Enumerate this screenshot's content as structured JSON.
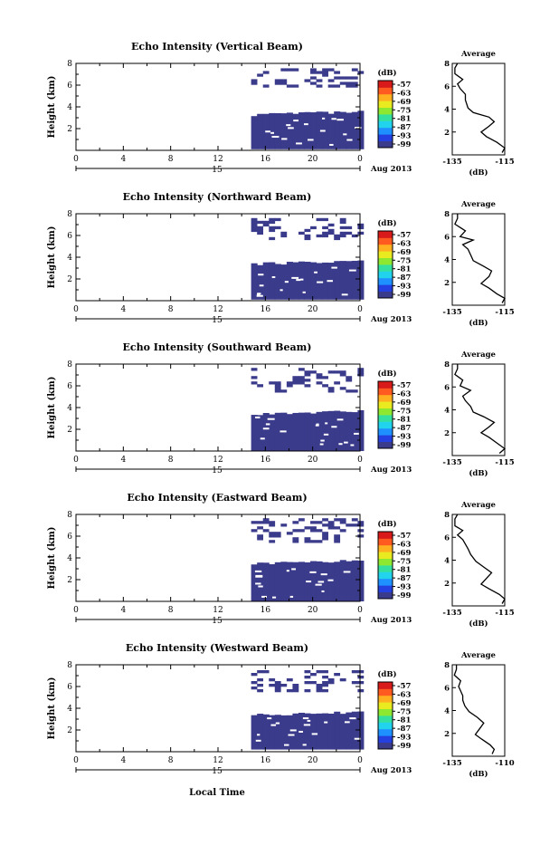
{
  "figure": {
    "xlabel": "Local Time",
    "date_label": "Aug 2013",
    "day_label": "15",
    "ylabel": "Height (km)",
    "colorbar_unit": "(dB)",
    "colorbar_ticks": [
      "-57",
      "-63",
      "-69",
      "-75",
      "-81",
      "-87",
      "-93",
      "-99"
    ],
    "colormap": [
      "#3b3b8c",
      "#2540e0",
      "#1e90ff",
      "#22d3ee",
      "#34e0a0",
      "#8ee830",
      "#eaea20",
      "#ffb020",
      "#ff5a20",
      "#d81a1a"
    ],
    "no_data_color": "#ffffff",
    "profile_title": "Average",
    "profile_xlabel": "(dB)"
  },
  "chart_data": [
    {
      "type": "heatmap",
      "title": "Echo Intensity (Vertical Beam)",
      "xlabel": "Local Time",
      "ylabel": "Height (km)",
      "xlim": [
        0,
        24
      ],
      "ylim": [
        0,
        8
      ],
      "x_ticks": [
        "0",
        "4",
        "8",
        "12",
        "16",
        "20",
        "0"
      ],
      "y_ticks": [
        "2",
        "4",
        "6",
        "8"
      ],
      "colorbar": {
        "unit": "(dB)",
        "range": [
          -99,
          -57
        ]
      },
      "data_start_hour": 14.8,
      "lower_layer_km": [
        0.1,
        3.3
      ],
      "upper_layer_km": [
        5.8,
        7.4
      ],
      "fill_value_db": -99,
      "profile": {
        "title": "Average",
        "xlabel": "(dB)",
        "xlim": [
          -135,
          -115
        ],
        "x_ticks": [
          "-135",
          "-115"
        ],
        "y_ticks": [
          "2",
          "4",
          "6",
          "8"
        ],
        "points": [
          [
            -116,
            0.2
          ],
          [
            -115,
            0.6
          ],
          [
            -118,
            1.1
          ],
          [
            -122,
            1.6
          ],
          [
            -124,
            2.0
          ],
          [
            -121,
            2.5
          ],
          [
            -119,
            2.9
          ],
          [
            -121,
            3.3
          ],
          [
            -127,
            3.7
          ],
          [
            -129,
            4.1
          ],
          [
            -130,
            4.8
          ],
          [
            -130,
            5.3
          ],
          [
            -132,
            5.8
          ],
          [
            -133,
            6.2
          ],
          [
            -131,
            6.6
          ],
          [
            -134,
            7.1
          ],
          [
            -134,
            7.6
          ],
          [
            -133,
            8.0
          ]
        ]
      }
    },
    {
      "type": "heatmap",
      "title": "Echo Intensity (Northward Beam)",
      "xlabel": "Local Time",
      "ylabel": "Height (km)",
      "xlim": [
        0,
        24
      ],
      "ylim": [
        0,
        8
      ],
      "x_ticks": [
        "0",
        "4",
        "8",
        "12",
        "16",
        "20",
        "0"
      ],
      "y_ticks": [
        "2",
        "4",
        "6",
        "8"
      ],
      "colorbar": {
        "unit": "(dB)",
        "range": [
          -99,
          -57
        ]
      },
      "data_start_hour": 14.8,
      "lower_layer_km": [
        0.1,
        3.4
      ],
      "upper_layer_km": [
        5.6,
        7.5
      ],
      "fill_value_db": -99,
      "profile": {
        "title": "Average",
        "xlabel": "(dB)",
        "xlim": [
          -135,
          -115
        ],
        "x_ticks": [
          "-135",
          "-115"
        ],
        "y_ticks": [
          "2",
          "4",
          "6",
          "8"
        ],
        "points": [
          [
            -116,
            0.2
          ],
          [
            -115,
            0.6
          ],
          [
            -118,
            1.0
          ],
          [
            -121,
            1.5
          ],
          [
            -124,
            1.9
          ],
          [
            -121,
            2.5
          ],
          [
            -120,
            3.0
          ],
          [
            -123,
            3.4
          ],
          [
            -127,
            3.9
          ],
          [
            -128,
            4.4
          ],
          [
            -129,
            4.9
          ],
          [
            -131,
            5.3
          ],
          [
            -127,
            5.7
          ],
          [
            -132,
            6.0
          ],
          [
            -130,
            6.5
          ],
          [
            -134,
            7.1
          ],
          [
            -133,
            7.6
          ],
          [
            -133,
            8.0
          ]
        ]
      }
    },
    {
      "type": "heatmap",
      "title": "Echo Intensity (Southward Beam)",
      "xlabel": "Local Time",
      "ylabel": "Height (km)",
      "xlim": [
        0,
        24
      ],
      "ylim": [
        0,
        8
      ],
      "x_ticks": [
        "0",
        "4",
        "8",
        "12",
        "16",
        "20",
        "0"
      ],
      "y_ticks": [
        "2",
        "4",
        "6",
        "8"
      ],
      "colorbar": {
        "unit": "(dB)",
        "range": [
          -99,
          -57
        ]
      },
      "data_start_hour": 14.8,
      "lower_layer_km": [
        0.0,
        3.4
      ],
      "upper_layer_km": [
        5.4,
        7.5
      ],
      "fill_value_db": -99,
      "profile": {
        "title": "Average",
        "xlabel": "(dB)",
        "xlim": [
          -135,
          -115
        ],
        "x_ticks": [
          "-135",
          "-115"
        ],
        "y_ticks": [
          "2",
          "4",
          "6",
          "8"
        ],
        "points": [
          [
            -117,
            0.2
          ],
          [
            -115,
            0.6
          ],
          [
            -118,
            1.1
          ],
          [
            -121,
            1.6
          ],
          [
            -124,
            2.0
          ],
          [
            -121,
            2.5
          ],
          [
            -119,
            2.9
          ],
          [
            -123,
            3.4
          ],
          [
            -127,
            3.8
          ],
          [
            -128,
            4.3
          ],
          [
            -130,
            4.8
          ],
          [
            -131,
            5.2
          ],
          [
            -128,
            5.7
          ],
          [
            -132,
            6.1
          ],
          [
            -131,
            6.6
          ],
          [
            -134,
            7.1
          ],
          [
            -133,
            7.6
          ],
          [
            -133,
            8.0
          ]
        ]
      }
    },
    {
      "type": "heatmap",
      "title": "Echo Intensity (Eastward Beam)",
      "xlabel": "Local Time",
      "ylabel": "Height (km)",
      "xlim": [
        0,
        24
      ],
      "ylim": [
        0,
        8
      ],
      "x_ticks": [
        "0",
        "4",
        "8",
        "12",
        "16",
        "20",
        "0"
      ],
      "y_ticks": [
        "2",
        "4",
        "6",
        "8"
      ],
      "colorbar": {
        "unit": "(dB)",
        "range": [
          -99,
          -57
        ]
      },
      "data_start_hour": 14.8,
      "lower_layer_km": [
        0.0,
        3.5
      ],
      "upper_layer_km": [
        5.4,
        7.6
      ],
      "fill_value_db": -99,
      "profile": {
        "title": "Average",
        "xlabel": "(dB)",
        "xlim": [
          -135,
          -115
        ],
        "x_ticks": [
          "-135",
          "-115"
        ],
        "y_ticks": [
          "2",
          "4",
          "6",
          "8"
        ],
        "points": [
          [
            -116,
            0.2
          ],
          [
            -115,
            0.6
          ],
          [
            -117,
            1.0
          ],
          [
            -121,
            1.5
          ],
          [
            -124,
            1.9
          ],
          [
            -122,
            2.4
          ],
          [
            -120,
            2.9
          ],
          [
            -123,
            3.4
          ],
          [
            -126,
            3.9
          ],
          [
            -128,
            4.5
          ],
          [
            -129,
            5.0
          ],
          [
            -130,
            5.4
          ],
          [
            -131,
            5.8
          ],
          [
            -133,
            6.2
          ],
          [
            -131,
            6.6
          ],
          [
            -134,
            7.0
          ],
          [
            -134,
            7.6
          ],
          [
            -133,
            8.0
          ]
        ]
      }
    },
    {
      "type": "heatmap",
      "title": "Echo Intensity (Westward Beam)",
      "xlabel": "Local Time",
      "ylabel": "Height (km)",
      "xlim": [
        0,
        24
      ],
      "ylim": [
        0,
        8
      ],
      "x_ticks": [
        "0",
        "4",
        "8",
        "12",
        "16",
        "20",
        "0"
      ],
      "y_ticks": [
        "2",
        "4",
        "6",
        "8"
      ],
      "colorbar": {
        "unit": "(dB)",
        "range": [
          -99,
          -57
        ]
      },
      "data_start_hour": 14.8,
      "lower_layer_km": [
        0.2,
        3.4
      ],
      "upper_layer_km": [
        5.5,
        7.5
      ],
      "fill_value_db": -99,
      "profile": {
        "title": "Average",
        "xlabel": "(dB)",
        "xlim": [
          -135,
          -110
        ],
        "x_ticks": [
          "-135",
          "-110"
        ],
        "y_ticks": [
          "2",
          "4",
          "6",
          "8"
        ],
        "points": [
          [
            -116,
            0.2
          ],
          [
            -115,
            0.6
          ],
          [
            -117,
            1.0
          ],
          [
            -121,
            1.5
          ],
          [
            -124,
            1.9
          ],
          [
            -122,
            2.4
          ],
          [
            -120,
            2.9
          ],
          [
            -123,
            3.4
          ],
          [
            -127,
            3.9
          ],
          [
            -129,
            4.4
          ],
          [
            -130,
            4.9
          ],
          [
            -130,
            5.3
          ],
          [
            -131,
            5.7
          ],
          [
            -132,
            6.1
          ],
          [
            -131,
            6.6
          ],
          [
            -134,
            7.1
          ],
          [
            -133,
            7.6
          ],
          [
            -133,
            8.0
          ]
        ]
      }
    }
  ]
}
